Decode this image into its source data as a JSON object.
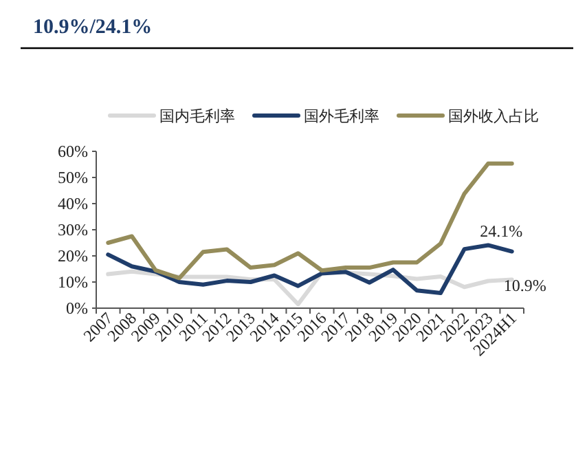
{
  "chart_data": {
    "type": "line",
    "title": "10.9%/24.1%",
    "categories": [
      "2007",
      "2008",
      "2009",
      "2010",
      "2011",
      "2012",
      "2013",
      "2014",
      "2015",
      "2016",
      "2017",
      "2018",
      "2019",
      "2020",
      "2021",
      "2022",
      "2023",
      "2024H1"
    ],
    "series": [
      {
        "name": "国内毛利率",
        "color": "#d9d9d9",
        "values": [
          13,
          14,
          13,
          12,
          12,
          12,
          11,
          11,
          1.5,
          13.6,
          13.6,
          13,
          12.3,
          11.2,
          12.1,
          8.1,
          10.4,
          10.9
        ]
      },
      {
        "name": "国外毛利率",
        "color": "#1f3d6b",
        "values": [
          20.5,
          16,
          14,
          10,
          9,
          10.5,
          10,
          12.5,
          8.5,
          13.3,
          13.9,
          9.8,
          14.7,
          6.8,
          5.8,
          22.6,
          24.1,
          21.7
        ]
      },
      {
        "name": "国外收入占比",
        "color": "#958c5a",
        "values": [
          25,
          27.5,
          14.5,
          11.5,
          21.5,
          22.5,
          15.5,
          16.5,
          21,
          14.4,
          15.5,
          15.5,
          17.5,
          17.5,
          24.7,
          43.8,
          55.3,
          55.3
        ]
      }
    ],
    "ylim": [
      0,
      60
    ],
    "yticks": [
      {
        "value": 0,
        "label": "0%"
      },
      {
        "value": 10,
        "label": "10%"
      },
      {
        "value": 20,
        "label": "20%"
      },
      {
        "value": 30,
        "label": "30%"
      },
      {
        "value": 40,
        "label": "40%"
      },
      {
        "value": 50,
        "label": "50%"
      },
      {
        "value": 60,
        "label": "60%"
      }
    ],
    "annotations": [
      {
        "text": "24.1%",
        "x": "2023",
        "y": 24.1
      },
      {
        "text": "10.9%",
        "x": "2024H1",
        "y": 10.9
      }
    ],
    "legend": "top",
    "grid": false,
    "marker": "none",
    "line_style": "solid"
  }
}
